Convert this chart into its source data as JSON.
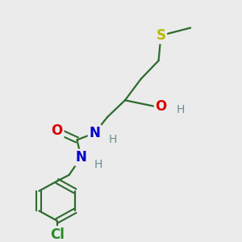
{
  "background_color": "#ebebeb",
  "bond_color": "#2d6b2d",
  "atom_colors": {
    "S": "#b8b800",
    "O": "#dd0000",
    "N": "#0000cc",
    "Cl": "#228b22",
    "H": "#6a8f8f",
    "C": "#2d6b2d"
  },
  "figsize": [
    3.0,
    3.0
  ],
  "dpi": 100
}
